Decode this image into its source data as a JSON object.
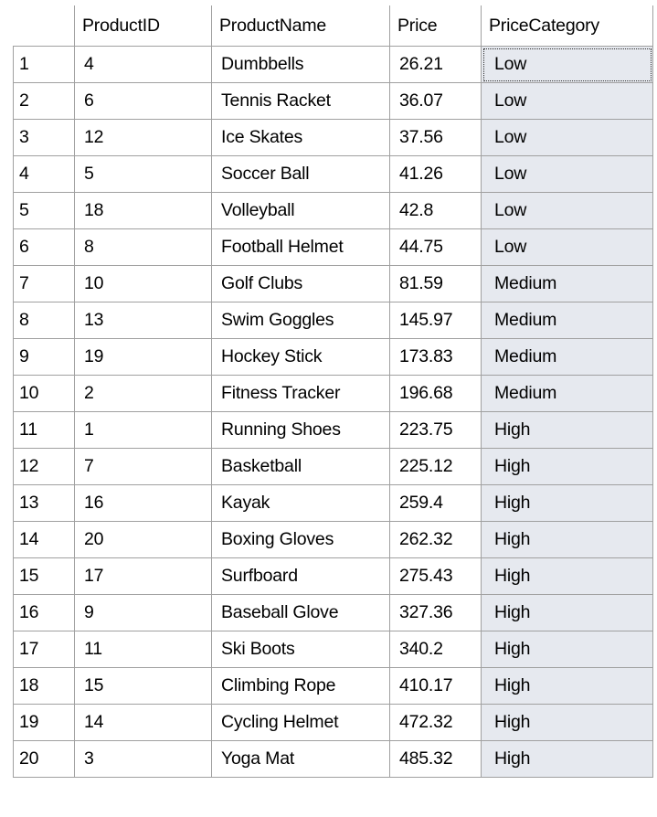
{
  "results_grid": {
    "columns": [
      "",
      "ProductID",
      "ProductName",
      "Price",
      "PriceCategory"
    ],
    "selected_cell": {
      "row": 1,
      "column": "PriceCategory"
    },
    "rows": [
      {
        "num": "1",
        "product_id": "4",
        "product_name": "Dumbbells",
        "price": "26.21",
        "price_category": "Low"
      },
      {
        "num": "2",
        "product_id": "6",
        "product_name": "Tennis Racket",
        "price": "36.07",
        "price_category": "Low"
      },
      {
        "num": "3",
        "product_id": "12",
        "product_name": "Ice Skates",
        "price": "37.56",
        "price_category": "Low"
      },
      {
        "num": "4",
        "product_id": "5",
        "product_name": "Soccer Ball",
        "price": "41.26",
        "price_category": "Low"
      },
      {
        "num": "5",
        "product_id": "18",
        "product_name": "Volleyball",
        "price": "42.8",
        "price_category": "Low"
      },
      {
        "num": "6",
        "product_id": "8",
        "product_name": "Football Helmet",
        "price": "44.75",
        "price_category": "Low"
      },
      {
        "num": "7",
        "product_id": "10",
        "product_name": "Golf Clubs",
        "price": "81.59",
        "price_category": "Medium"
      },
      {
        "num": "8",
        "product_id": "13",
        "product_name": "Swim Goggles",
        "price": "145.97",
        "price_category": "Medium"
      },
      {
        "num": "9",
        "product_id": "19",
        "product_name": "Hockey Stick",
        "price": "173.83",
        "price_category": "Medium"
      },
      {
        "num": "10",
        "product_id": "2",
        "product_name": "Fitness Tracker",
        "price": "196.68",
        "price_category": "Medium"
      },
      {
        "num": "11",
        "product_id": "1",
        "product_name": "Running Shoes",
        "price": "223.75",
        "price_category": "High"
      },
      {
        "num": "12",
        "product_id": "7",
        "product_name": "Basketball",
        "price": "225.12",
        "price_category": "High"
      },
      {
        "num": "13",
        "product_id": "16",
        "product_name": "Kayak",
        "price": "259.4",
        "price_category": "High"
      },
      {
        "num": "14",
        "product_id": "20",
        "product_name": "Boxing Gloves",
        "price": "262.32",
        "price_category": "High"
      },
      {
        "num": "15",
        "product_id": "17",
        "product_name": "Surfboard",
        "price": "275.43",
        "price_category": "High"
      },
      {
        "num": "16",
        "product_id": "9",
        "product_name": "Baseball Glove",
        "price": "327.36",
        "price_category": "High"
      },
      {
        "num": "17",
        "product_id": "11",
        "product_name": "Ski Boots",
        "price": "340.2",
        "price_category": "High"
      },
      {
        "num": "18",
        "product_id": "15",
        "product_name": "Climbing Rope",
        "price": "410.17",
        "price_category": "High"
      },
      {
        "num": "19",
        "product_id": "14",
        "product_name": "Cycling Helmet",
        "price": "472.32",
        "price_category": "High"
      },
      {
        "num": "20",
        "product_id": "3",
        "product_name": "Yoga Mat",
        "price": "485.32",
        "price_category": "High"
      }
    ]
  }
}
